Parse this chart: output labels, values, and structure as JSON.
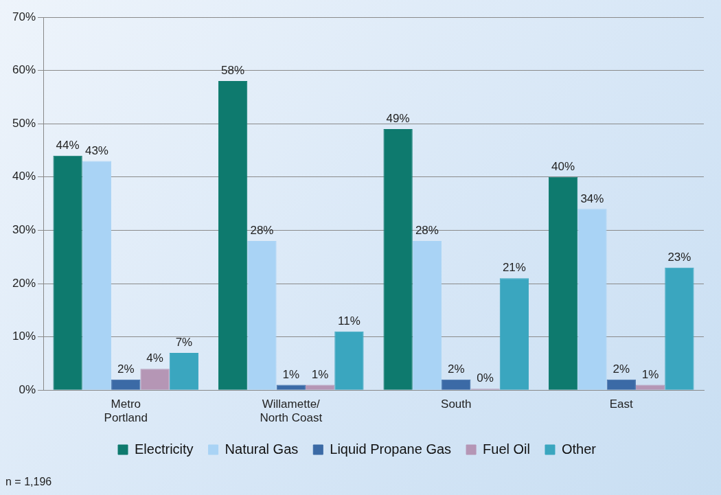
{
  "chart_data": {
    "type": "bar",
    "categories": [
      "Metro\nPortland",
      "Willamette/\nNorth Coast",
      "South",
      "East"
    ],
    "series": [
      {
        "name": "Electricity",
        "color": "#0e7a6e",
        "values": [
          44,
          58,
          49,
          40
        ],
        "value_labels": [
          "44%",
          "58%",
          "49%",
          "40%"
        ]
      },
      {
        "name": "Natural Gas",
        "color": "#a9d3f5",
        "values": [
          43,
          28,
          28,
          34
        ],
        "value_labels": [
          "43%",
          "28%",
          "28%",
          "34%"
        ]
      },
      {
        "name": "Liquid Propane Gas",
        "color": "#3b6aa6",
        "values": [
          2,
          1,
          2,
          2
        ],
        "value_labels": [
          "2%",
          "1%",
          "2%",
          "2%"
        ]
      },
      {
        "name": "Fuel Oil",
        "color": "#b596b5",
        "values": [
          4,
          1,
          0,
          1
        ],
        "value_labels": [
          "4%",
          "1%",
          "0%",
          "1%"
        ]
      },
      {
        "name": "Other",
        "color": "#3aa6bf",
        "values": [
          7,
          11,
          21,
          23
        ],
        "value_labels": [
          "7%",
          "11%",
          "21%",
          "23%"
        ]
      }
    ],
    "ylim": [
      0,
      70
    ],
    "yticks": [
      {
        "value": 0,
        "label": "0%"
      },
      {
        "value": 10,
        "label": "10%"
      },
      {
        "value": 20,
        "label": "20%"
      },
      {
        "value": 30,
        "label": "30%"
      },
      {
        "value": 40,
        "label": "40%"
      },
      {
        "value": 50,
        "label": "50%"
      },
      {
        "value": 60,
        "label": "60%"
      },
      {
        "value": 70,
        "label": "70%"
      }
    ],
    "grid": "y",
    "legend": "bottom",
    "annotations": [
      "n = 1,196"
    ]
  }
}
